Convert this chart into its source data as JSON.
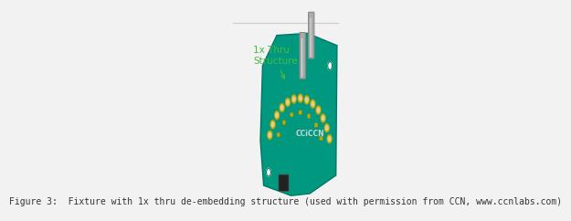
{
  "background_color": "#f2f2f2",
  "top_line_color": "#cccccc",
  "caption_text": "Figure 3:  Fixture with 1x thru de-embedding structure (used with permission from CCN, www.ccnlabs.com)",
  "caption_fontsize": 7.0,
  "caption_color": "#333333",
  "caption_font": "monospace",
  "annotation_text": "1x Thru\nStructure",
  "annotation_color": "#44bb44",
  "annotation_fontsize": 7.5,
  "board_color": "#009980",
  "board_edge_color": "#007766"
}
